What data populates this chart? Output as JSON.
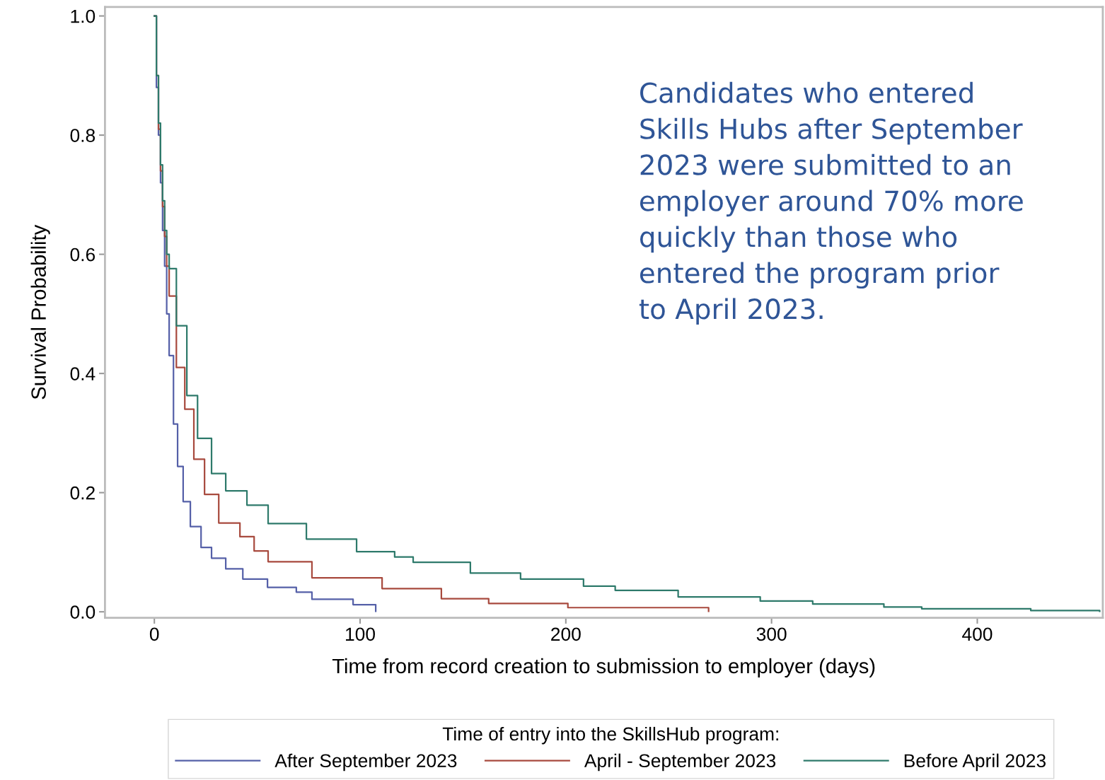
{
  "chart_data": {
    "type": "step",
    "xlabel": "Time from record creation to submission to employer (days)",
    "ylabel": "Survival Probability",
    "legend_title": "Time of entry into the SkillsHub program:",
    "legend": "bottom",
    "grid": false,
    "marker": "none",
    "line_style": "solid",
    "xlim": [
      -24,
      461
    ],
    "ylim": [
      -0.01,
      1.015
    ],
    "xticks": [
      0,
      100,
      200,
      300,
      400
    ],
    "yticks": [
      {
        "value": 0,
        "label": "0.0"
      },
      0.2,
      0.4,
      0.6,
      0.8,
      {
        "value": 1,
        "label": "1.0"
      }
    ],
    "annotations": [
      "Candidates who entered Skills Hubs after September 2023 were submitted to an employer around 70% more quickly than those who entered the program prior to April 2023."
    ],
    "series": [
      {
        "name": "After September 2023",
        "color": "#5560a8",
        "x": [
          0,
          1,
          2,
          3,
          4,
          5,
          6,
          7.2,
          9.3,
          11.3,
          14,
          17.5,
          22.7,
          27.8,
          34.7,
          43,
          55,
          69,
          76.6,
          83,
          96.6,
          107.6
        ],
        "values": [
          1.0,
          0.88,
          0.8,
          0.72,
          0.64,
          0.58,
          0.5,
          0.43,
          0.315,
          0.244,
          0.185,
          0.143,
          0.108,
          0.09,
          0.072,
          0.055,
          0.041,
          0.033,
          0.021,
          0.021,
          0.012,
          0.001
        ]
      },
      {
        "name": "April - September 2023",
        "color": "#a84a3e",
        "x": [
          0,
          1,
          2,
          3,
          4,
          5,
          6,
          7.2,
          10.7,
          14.8,
          19.2,
          24.4,
          31.3,
          41.6,
          48.5,
          55.3,
          76.6,
          110.7,
          139.5,
          162.5,
          201,
          269.4
        ],
        "values": [
          1.0,
          0.9,
          0.81,
          0.74,
          0.68,
          0.63,
          0.58,
          0.53,
          0.41,
          0.34,
          0.256,
          0.197,
          0.149,
          0.126,
          0.102,
          0.084,
          0.057,
          0.039,
          0.022,
          0.014,
          0.007,
          0.001
        ]
      },
      {
        "name": "Before April 2023",
        "color": "#2e7a6b",
        "x": [
          0,
          1,
          2,
          3,
          4,
          5,
          6,
          7.2,
          10.7,
          15.8,
          21,
          27.8,
          34.7,
          45,
          55.3,
          73.9,
          98.3,
          116.8,
          125.8,
          153.6,
          178,
          208.6,
          224,
          254.6,
          294.5,
          320,
          354.6,
          373,
          426,
          459.5
        ],
        "values": [
          1.0,
          0.9,
          0.82,
          0.75,
          0.69,
          0.64,
          0.6,
          0.576,
          0.48,
          0.363,
          0.291,
          0.232,
          0.203,
          0.179,
          0.148,
          0.122,
          0.101,
          0.092,
          0.083,
          0.065,
          0.055,
          0.043,
          0.036,
          0.025,
          0.018,
          0.013,
          0.008,
          0.005,
          0.002,
          0.001
        ]
      }
    ]
  }
}
